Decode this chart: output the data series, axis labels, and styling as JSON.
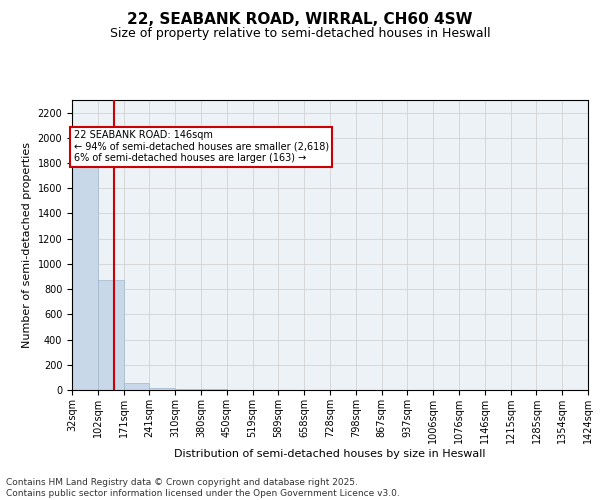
{
  "title": "22, SEABANK ROAD, WIRRAL, CH60 4SW",
  "subtitle": "Size of property relative to semi-detached houses in Heswall",
  "xlabel": "Distribution of semi-detached houses by size in Heswall",
  "ylabel": "Number of semi-detached properties",
  "footer": "Contains HM Land Registry data © Crown copyright and database right 2025.\nContains public sector information licensed under the Open Government Licence v3.0.",
  "annotation_line1": "22 SEABANK ROAD: 146sqm",
  "annotation_line2": "← 94% of semi-detached houses are smaller (2,618)",
  "annotation_line3": "6% of semi-detached houses are larger (163) →",
  "property_size": 146,
  "bins": [
    32,
    102,
    171,
    241,
    310,
    380,
    450,
    519,
    589,
    658,
    728,
    798,
    867,
    937,
    1006,
    1076,
    1146,
    1215,
    1285,
    1354,
    1424
  ],
  "bar_heights": [
    1820,
    870,
    55,
    18,
    8,
    4,
    2,
    1,
    1,
    0,
    1,
    0,
    0,
    0,
    0,
    0,
    0,
    0,
    0,
    0
  ],
  "bar_color": "#c8d8e8",
  "bar_edge_color": "#a0b8cc",
  "vline_color": "#cc0000",
  "ylim": [
    0,
    2300
  ],
  "yticks": [
    0,
    200,
    400,
    600,
    800,
    1000,
    1200,
    1400,
    1600,
    1800,
    2000,
    2200
  ],
  "grid_color": "#cccccc",
  "background_color": "#edf2f7",
  "annotation_box_color": "#cc0000",
  "title_fontsize": 11,
  "subtitle_fontsize": 9,
  "tick_fontsize": 7,
  "label_fontsize": 8,
  "footer_fontsize": 6.5
}
